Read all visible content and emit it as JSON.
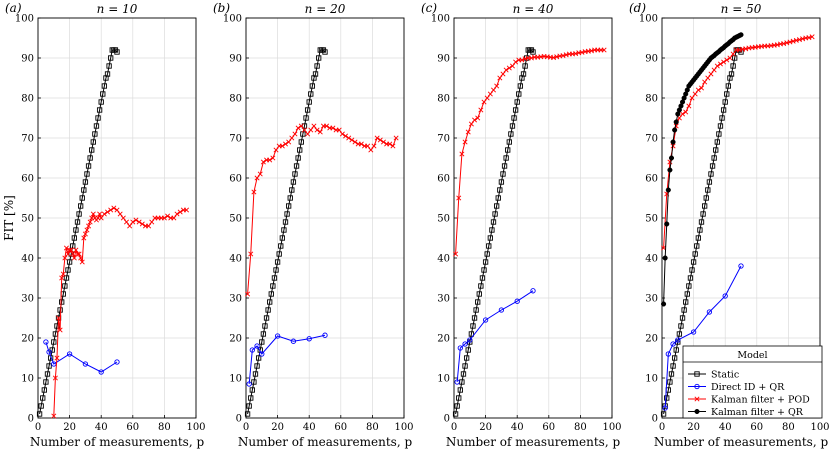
{
  "figure": {
    "ylabel": "FIT [%]",
    "xlabel": "Number of measurements, p",
    "legend_title": "Model"
  },
  "series_styles": [
    {
      "name": "Static",
      "color": "#000000",
      "marker": "square"
    },
    {
      "name": "Direct ID + QR",
      "color": "#0000ff",
      "marker": "circle"
    },
    {
      "name": "Kalman filter + POD",
      "color": "#ff0000",
      "marker": "x"
    },
    {
      "name": "Kalman filter + QR",
      "color": "#000000",
      "marker": "dot"
    }
  ],
  "chart_data": [
    {
      "type": "line",
      "panel_label": "(a)",
      "title": "n = 10",
      "xlim": [
        0,
        100
      ],
      "ylim": [
        0,
        100
      ],
      "xticks": [
        0,
        20,
        40,
        60,
        80,
        100
      ],
      "yticks": [
        0,
        10,
        20,
        30,
        40,
        50,
        60,
        70,
        80,
        90,
        100
      ],
      "grid": true,
      "series": [
        {
          "name": "Static",
          "x": [
            1,
            2,
            3,
            4,
            5,
            6,
            7,
            8,
            9,
            10,
            11,
            12,
            13,
            14,
            15,
            16,
            17,
            18,
            19,
            20,
            21,
            22,
            23,
            24,
            25,
            26,
            27,
            28,
            29,
            30,
            31,
            32,
            33,
            34,
            35,
            36,
            37,
            38,
            39,
            40,
            41,
            42,
            43,
            44,
            45,
            46,
            47,
            48,
            49,
            50
          ],
          "y": [
            1,
            3,
            5,
            7,
            9,
            11,
            13,
            15,
            17,
            19,
            21,
            23,
            25,
            27,
            29,
            31,
            33,
            35,
            37,
            39,
            41,
            43,
            45,
            47,
            49,
            51,
            53,
            55,
            57,
            59,
            61,
            63,
            65,
            67,
            69,
            71,
            73,
            75,
            77,
            79,
            81,
            83,
            85,
            86,
            88,
            90,
            92,
            92,
            92,
            91.5
          ]
        },
        {
          "name": "Direct ID + QR",
          "x": [
            5,
            7,
            10,
            20,
            30,
            40,
            50
          ],
          "y": [
            19,
            16.5,
            13.5,
            16,
            13.5,
            11.5,
            14
          ]
        },
        {
          "name": "Kalman filter + POD",
          "x": [
            10,
            11,
            12,
            13,
            14,
            15,
            16,
            17,
            18,
            19,
            20,
            21,
            22,
            23,
            24,
            25,
            26,
            27,
            28,
            29,
            30,
            31,
            32,
            33,
            34,
            35,
            36,
            37,
            38,
            39,
            40,
            42,
            44,
            46,
            48,
            50,
            52,
            54,
            56,
            58,
            60,
            62,
            64,
            66,
            68,
            70,
            72,
            74,
            76,
            78,
            80,
            82,
            84,
            86,
            88,
            90,
            92,
            94
          ],
          "y": [
            0.5,
            10,
            15,
            25,
            22,
            35,
            36,
            40,
            42.5,
            41,
            42,
            42,
            41,
            40,
            42,
            41,
            41,
            40,
            39,
            45,
            46,
            47,
            48,
            49,
            50,
            51,
            50,
            49.5,
            50,
            51,
            50,
            51,
            51.5,
            52,
            52.5,
            52,
            51,
            50,
            49,
            48,
            49,
            49.5,
            49,
            48.5,
            48,
            48,
            49,
            50,
            50,
            50,
            50,
            50.5,
            50,
            50,
            51,
            51.5,
            52,
            52
          ]
        }
      ]
    },
    {
      "type": "line",
      "panel_label": "(b)",
      "title": "n = 20",
      "xlim": [
        0,
        100
      ],
      "ylim": [
        0,
        100
      ],
      "xticks": [
        0,
        20,
        40,
        60,
        80,
        100
      ],
      "yticks": [
        0,
        10,
        20,
        30,
        40,
        50,
        60,
        70,
        80,
        90,
        100
      ],
      "grid": true,
      "series": [
        {
          "name": "Static",
          "x": [
            1,
            2,
            3,
            4,
            5,
            6,
            7,
            8,
            9,
            10,
            11,
            12,
            13,
            14,
            15,
            16,
            17,
            18,
            19,
            20,
            21,
            22,
            23,
            24,
            25,
            26,
            27,
            28,
            29,
            30,
            31,
            32,
            33,
            34,
            35,
            36,
            37,
            38,
            39,
            40,
            41,
            42,
            43,
            44,
            45,
            46,
            47,
            48,
            49,
            50
          ],
          "y": [
            1,
            3,
            5,
            7,
            9,
            11,
            13,
            15,
            17,
            19,
            21,
            23,
            25,
            27,
            29,
            31,
            33,
            35,
            37,
            39,
            41,
            43,
            45,
            47,
            49,
            51,
            53,
            55,
            57,
            59,
            61,
            63,
            65,
            67,
            69,
            71,
            73,
            75,
            77,
            79,
            81,
            83,
            85,
            86,
            88,
            90,
            92,
            92,
            92,
            91.5
          ]
        },
        {
          "name": "Direct ID + QR",
          "x": [
            2,
            4,
            7,
            10,
            20,
            30,
            40,
            50
          ],
          "y": [
            8.5,
            17,
            18,
            16,
            20.5,
            19.2,
            19.8,
            20.7
          ]
        },
        {
          "name": "Kalman filter + POD",
          "x": [
            1,
            3,
            5,
            7,
            9,
            11,
            13,
            15,
            17,
            19,
            21,
            23,
            25,
            27,
            29,
            31,
            33,
            35,
            37,
            39,
            41,
            43,
            45,
            47,
            49,
            51,
            53,
            55,
            57,
            59,
            61,
            63,
            65,
            67,
            69,
            71,
            73,
            75,
            77,
            79,
            81,
            83,
            85,
            87,
            89,
            91,
            93,
            95
          ],
          "y": [
            31,
            41,
            56.5,
            60,
            61,
            64,
            64.5,
            64.5,
            65,
            67,
            68,
            68,
            68.5,
            69,
            70,
            71,
            72.5,
            73,
            72,
            71,
            72,
            73,
            72,
            71.5,
            73,
            73,
            72.5,
            72.5,
            72,
            72,
            71,
            70.5,
            70,
            69.5,
            69,
            68.5,
            68.5,
            68,
            68,
            67,
            68,
            70,
            69.5,
            69,
            68.5,
            68.5,
            68,
            70
          ]
        }
      ]
    },
    {
      "type": "line",
      "panel_label": "(c)",
      "title": "n = 40",
      "xlim": [
        0,
        100
      ],
      "ylim": [
        0,
        100
      ],
      "xticks": [
        0,
        20,
        40,
        60,
        80,
        100
      ],
      "yticks": [
        0,
        10,
        20,
        30,
        40,
        50,
        60,
        70,
        80,
        90,
        100
      ],
      "grid": true,
      "series": [
        {
          "name": "Static",
          "x": [
            1,
            2,
            3,
            4,
            5,
            6,
            7,
            8,
            9,
            10,
            11,
            12,
            13,
            14,
            15,
            16,
            17,
            18,
            19,
            20,
            21,
            22,
            23,
            24,
            25,
            26,
            27,
            28,
            29,
            30,
            31,
            32,
            33,
            34,
            35,
            36,
            37,
            38,
            39,
            40,
            41,
            42,
            43,
            44,
            45,
            46,
            47,
            48,
            49,
            50
          ],
          "y": [
            1,
            3,
            5,
            7,
            9,
            11,
            13,
            15,
            17,
            19,
            21,
            23,
            25,
            27,
            29,
            31,
            33,
            35,
            37,
            39,
            41,
            43,
            45,
            47,
            49,
            51,
            53,
            55,
            57,
            59,
            61,
            63,
            65,
            67,
            69,
            71,
            73,
            75,
            77,
            79,
            81,
            83,
            85,
            86,
            88,
            90,
            92,
            92,
            92,
            91.5
          ]
        },
        {
          "name": "Direct ID + QR",
          "x": [
            2,
            4,
            7,
            10,
            20,
            30,
            40,
            50
          ],
          "y": [
            9,
            17.5,
            18.5,
            19.5,
            24.5,
            27,
            29.2,
            31.8
          ]
        },
        {
          "name": "Kalman filter + POD",
          "x": [
            1,
            3,
            5,
            7,
            9,
            11,
            13,
            15,
            17,
            19,
            21,
            23,
            25,
            27,
            29,
            31,
            33,
            35,
            37,
            39,
            41,
            43,
            45,
            47,
            49,
            51,
            53,
            55,
            57,
            59,
            61,
            63,
            65,
            67,
            69,
            71,
            73,
            75,
            77,
            79,
            81,
            83,
            85,
            87,
            89,
            91,
            93,
            95
          ],
          "y": [
            41,
            55,
            66,
            69,
            71.5,
            73.5,
            74.5,
            75,
            77,
            79,
            80,
            81,
            82,
            83,
            85,
            86,
            87,
            87.5,
            88,
            89,
            89.5,
            89.5,
            89.8,
            90,
            90,
            90.2,
            90.2,
            90.3,
            90.4,
            90.3,
            90.2,
            90.1,
            90.3,
            90.5,
            90.6,
            90.8,
            91,
            91,
            91.1,
            91.3,
            91.4,
            91.6,
            91.7,
            91.8,
            92,
            92,
            92,
            92
          ]
        }
      ]
    },
    {
      "type": "line",
      "panel_label": "(d)",
      "title": "n = 50",
      "xlim": [
        0,
        100
      ],
      "ylim": [
        0,
        100
      ],
      "xticks": [
        0,
        20,
        40,
        60,
        80,
        100
      ],
      "yticks": [
        0,
        10,
        20,
        30,
        40,
        50,
        60,
        70,
        80,
        90,
        100
      ],
      "grid": true,
      "legend_position": "bottom-right",
      "series": [
        {
          "name": "Static",
          "x": [
            1,
            2,
            3,
            4,
            5,
            6,
            7,
            8,
            9,
            10,
            11,
            12,
            13,
            14,
            15,
            16,
            17,
            18,
            19,
            20,
            21,
            22,
            23,
            24,
            25,
            26,
            27,
            28,
            29,
            30,
            31,
            32,
            33,
            34,
            35,
            36,
            37,
            38,
            39,
            40,
            41,
            42,
            43,
            44,
            45,
            46,
            47,
            48,
            49,
            50
          ],
          "y": [
            1,
            3,
            5,
            7,
            9,
            11,
            13,
            15,
            17,
            19,
            21,
            23,
            25,
            27,
            29,
            31,
            33,
            35,
            37,
            39,
            41,
            43,
            45,
            47,
            49,
            51,
            53,
            55,
            57,
            59,
            61,
            63,
            65,
            67,
            69,
            71,
            73,
            75,
            77,
            79,
            81,
            83,
            85,
            86,
            88,
            90,
            92,
            92,
            92,
            91.5
          ]
        },
        {
          "name": "Direct ID + QR",
          "x": [
            2,
            4,
            7,
            10,
            20,
            30,
            40,
            50
          ],
          "y": [
            2.5,
            16,
            18.5,
            19.5,
            21.5,
            26.5,
            30.5,
            38
          ]
        },
        {
          "name": "Kalman filter + POD",
          "x": [
            1,
            3,
            5,
            7,
            9,
            11,
            13,
            15,
            17,
            19,
            21,
            23,
            25,
            27,
            29,
            31,
            33,
            35,
            37,
            39,
            41,
            43,
            45,
            47,
            49,
            51,
            53,
            55,
            57,
            59,
            61,
            63,
            65,
            67,
            69,
            71,
            73,
            75,
            77,
            79,
            81,
            83,
            85,
            87,
            89,
            91,
            93,
            95
          ],
          "y": [
            42.5,
            56,
            64,
            68,
            73,
            75,
            76,
            76.5,
            78,
            80,
            81,
            82,
            82.5,
            84,
            85,
            86,
            87,
            88,
            88.5,
            89,
            89.5,
            90,
            91,
            92,
            92,
            92.2,
            92.3,
            92.5,
            92.6,
            92.7,
            92.8,
            92.9,
            93,
            93,
            93.1,
            93.2,
            93.3,
            93.5,
            93.6,
            93.8,
            94,
            94.2,
            94.4,
            94.6,
            94.8,
            95,
            95.1,
            95.3
          ]
        },
        {
          "name": "Kalman filter + QR",
          "x": [
            1,
            2,
            3,
            4,
            5,
            6,
            7,
            8,
            9,
            10,
            11,
            12,
            13,
            14,
            15,
            16,
            17,
            18,
            19,
            20,
            21,
            22,
            23,
            24,
            25,
            26,
            27,
            28,
            29,
            30,
            31,
            32,
            33,
            34,
            35,
            36,
            37,
            38,
            39,
            40,
            41,
            42,
            43,
            44,
            45,
            46,
            47,
            48,
            49,
            50
          ],
          "y": [
            28.5,
            40,
            48.5,
            57,
            62,
            65,
            69,
            72,
            74,
            76,
            77,
            78,
            79,
            80,
            81,
            82,
            83,
            83.5,
            84,
            84.5,
            85,
            85.5,
            86,
            86.5,
            87,
            87.5,
            88,
            88.5,
            89,
            89.5,
            90,
            90.3,
            90.6,
            91,
            91.3,
            91.6,
            92,
            92.3,
            92.6,
            93,
            93.3,
            93.6,
            94,
            94.3,
            94.6,
            95,
            95.2,
            95.4,
            95.6,
            95.8
          ]
        }
      ]
    }
  ]
}
